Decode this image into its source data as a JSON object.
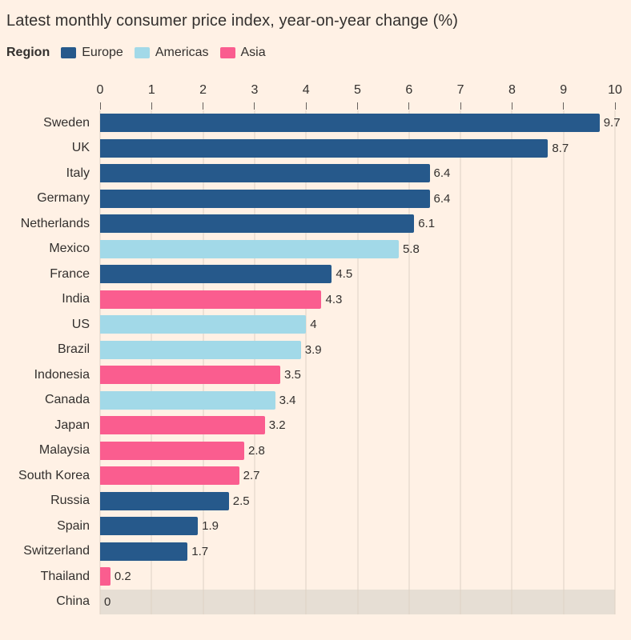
{
  "title": "Latest monthly consumer price index, year-on-year change (%)",
  "legend": {
    "label": "Region",
    "items": [
      {
        "name": "Europe",
        "color": "#26598b"
      },
      {
        "name": "Americas",
        "color": "#a2d9e8"
      },
      {
        "name": "Asia",
        "color": "#fa5d8f"
      }
    ]
  },
  "colors": {
    "background": "#fff1e5",
    "grid": "#ddd1c5",
    "tick": "#66605c",
    "text": "#33302e",
    "highlight_band": "#e6ded4"
  },
  "chart_data": {
    "type": "bar",
    "orientation": "horizontal",
    "title": "Latest monthly consumer price index, year-on-year change (%)",
    "xlabel": "",
    "ylabel": "",
    "xlim": [
      0,
      10
    ],
    "ticks": [
      0,
      1,
      2,
      3,
      4,
      5,
      6,
      7,
      8,
      9,
      10
    ],
    "grid": true,
    "legend_position": "top",
    "categories": [
      "Sweden",
      "UK",
      "Italy",
      "Germany",
      "Netherlands",
      "Mexico",
      "France",
      "India",
      "US",
      "Brazil",
      "Indonesia",
      "Canada",
      "Japan",
      "Malaysia",
      "South Korea",
      "Russia",
      "Spain",
      "Switzerland",
      "Thailand",
      "China"
    ],
    "values": [
      9.7,
      8.7,
      6.4,
      6.4,
      6.1,
      5.8,
      4.5,
      4.3,
      4,
      3.9,
      3.5,
      3.4,
      3.2,
      2.8,
      2.7,
      2.5,
      1.9,
      1.7,
      0.2,
      0
    ],
    "value_labels": [
      "9.7",
      "8.7",
      "6.4",
      "6.4",
      "6.1",
      "5.8",
      "4.5",
      "4.3",
      "4",
      "3.9",
      "3.5",
      "3.4",
      "3.2",
      "2.8",
      "2.7",
      "2.5",
      "1.9",
      "1.7",
      "0.2",
      "0"
    ],
    "regions": [
      "Europe",
      "Europe",
      "Europe",
      "Europe",
      "Europe",
      "Americas",
      "Europe",
      "Asia",
      "Americas",
      "Americas",
      "Asia",
      "Americas",
      "Asia",
      "Asia",
      "Asia",
      "Europe",
      "Europe",
      "Europe",
      "Asia",
      "Asia"
    ],
    "highlighted_row": "China"
  }
}
